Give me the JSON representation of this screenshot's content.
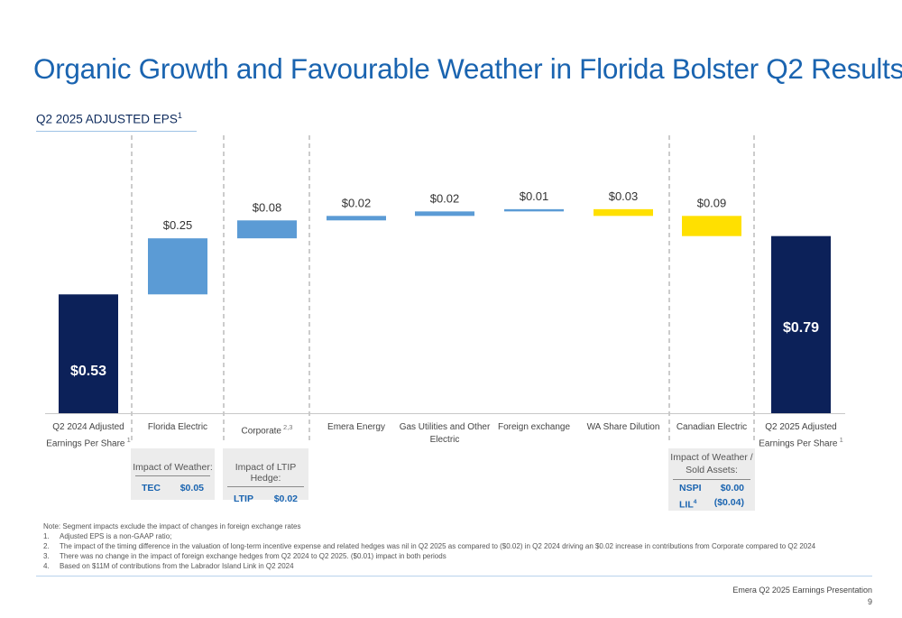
{
  "header": {
    "title": "Organic Growth and Favourable Weather in Florida Bolster Q2 Results",
    "subtitle": "Q2 2025 ADJUSTED EPS",
    "subtitle_sup": "1"
  },
  "chart_data": {
    "type": "bar",
    "subtype": "waterfall",
    "title": "Q2 2025 ADJUSTED EPS",
    "categories": [
      "Q2 2024 Adjusted Earnings Per Share",
      "Florida Electric",
      "Corporate",
      "Emera Energy",
      "Gas Utilities and Other Electric",
      "Foreign exchange",
      "WA Share Dilution",
      "Canadian Electric",
      "Q2 2025 Adjusted Earnings Per Share"
    ],
    "category_sups": [
      "1",
      "",
      "2,3",
      "",
      "",
      "",
      "",
      "",
      "1"
    ],
    "bars": [
      {
        "kind": "total",
        "start": 0,
        "end": 0.53,
        "label": "$0.53",
        "color": "#0c2159"
      },
      {
        "kind": "delta",
        "start": 0.53,
        "end": 0.78,
        "label": "$0.25",
        "color": "#5b9bd5"
      },
      {
        "kind": "delta",
        "start": 0.78,
        "end": 0.86,
        "label": "$0.08",
        "color": "#5b9bd5"
      },
      {
        "kind": "delta",
        "start": 0.86,
        "end": 0.88,
        "label": "$0.02",
        "color": "#5b9bd5"
      },
      {
        "kind": "delta",
        "start": 0.88,
        "end": 0.9,
        "label": "$0.02",
        "color": "#5b9bd5"
      },
      {
        "kind": "delta",
        "start": 0.9,
        "end": 0.91,
        "label": "$0.01",
        "color": "#5b9bd5"
      },
      {
        "kind": "delta",
        "start": 0.91,
        "end": 0.88,
        "label": "$0.03",
        "color": "#ffe000"
      },
      {
        "kind": "delta",
        "start": 0.88,
        "end": 0.79,
        "label": "$0.09",
        "color": "#ffe000"
      },
      {
        "kind": "total",
        "start": 0,
        "end": 0.79,
        "label": "$0.79",
        "color": "#0c2159"
      }
    ],
    "positive_color": "#5b9bd5",
    "negative_color": "#ffe000",
    "total_color": "#0c2159",
    "grid": false,
    "legend": "none"
  },
  "impact_boxes": [
    {
      "title": "Impact of Weather:",
      "rows": [
        {
          "name": "TEC",
          "sup": "",
          "value": "$0.05"
        }
      ]
    },
    {
      "title": "Impact of LTIP Hedge:",
      "rows": [
        {
          "name": "LTIP",
          "sup": "",
          "value": "$0.02"
        }
      ]
    },
    {
      "title": "Impact of Weather / Sold Assets:",
      "rows": [
        {
          "name": "NSPI",
          "sup": "",
          "value": "$0.00"
        },
        {
          "name": "LIL",
          "sup": "4",
          "value": "($0.04)"
        }
      ]
    }
  ],
  "notes": {
    "intro": "Note: Segment impacts exclude the impact of changes in foreign exchange rates",
    "items": [
      {
        "num": "1.",
        "text": "Adjusted EPS is a non-GAAP ratio;"
      },
      {
        "num": "2.",
        "text": "The impact of the timing difference in the valuation of long-term incentive expense and related hedges was nil in Q2 2025 as compared to ($0.02) in Q2 2024 driving an $0.02 increase in contributions from Corporate compared to Q2 2024"
      },
      {
        "num": "3.",
        "text": "There was no change in the impact of foreign exchange hedges from Q2 2024 to Q2 2025. ($0.01) impact in both periods"
      },
      {
        "num": "4.",
        "text": "Based on $11M of contributions from the Labrador Island Link in Q2 2024"
      }
    ]
  },
  "footer": {
    "presentation": "Emera Q2 2025 Earnings Presentation",
    "page": "9"
  }
}
